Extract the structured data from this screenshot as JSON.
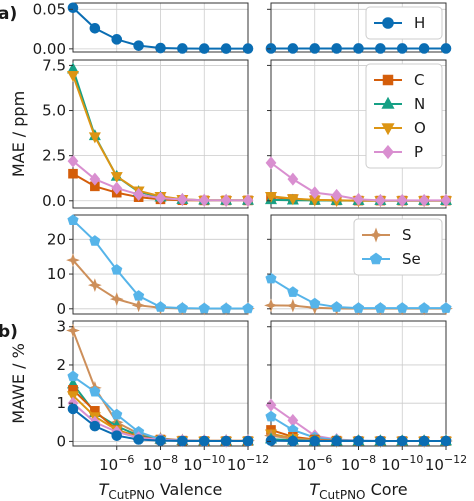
{
  "chart_data": {
    "type": "line",
    "x": [
      0.0001,
      1e-05,
      1e-06,
      1e-07,
      1e-08,
      1e-09,
      1e-10,
      1e-11,
      1e-12
    ],
    "x_scale": "log-reversed",
    "xlim_exp": [
      -4,
      -12
    ],
    "x_ticks": [
      {
        "base": "10",
        "exp": "−6"
      },
      {
        "base": "10",
        "exp": "−8"
      },
      {
        "base": "10",
        "exp": "−10"
      },
      {
        "base": "10",
        "exp": "−12"
      }
    ],
    "x_tick_exps": [
      -6,
      -8,
      -10,
      -12
    ],
    "xlabels": {
      "valence": {
        "sym": "T",
        "sub": "CutPNO",
        "rest": " Valence"
      },
      "core": {
        "sym": "T",
        "sub": "CutPNO",
        "rest": " Core"
      }
    },
    "grid": true,
    "colors": {
      "H": "#0a6db3",
      "C": "#d45d0a",
      "N": "#16a085",
      "O": "#dc9514",
      "P": "#d98fd0",
      "S": "#cd8f5a",
      "Se": "#56b4e9"
    },
    "rows": [
      {
        "label": "a)",
        "ylabel": "",
        "ylim": [
          -0.004,
          0.058
        ],
        "yticks": [
          0.0,
          0.05
        ],
        "ytick_labels": [
          "0.00",
          "0.05"
        ],
        "legend": [
          "H"
        ],
        "valence": [
          {
            "name": "H",
            "marker": "circle",
            "values": [
              0.052,
              0.026,
              0.012,
              0.004,
              0.001,
              0.0005,
              0.0003,
              0.0003,
              0.0003
            ]
          }
        ],
        "core": [
          {
            "name": "H",
            "marker": "circle",
            "values": [
              0.0005,
              0.0005,
              0.0005,
              0.0005,
              0.0005,
              0.0005,
              0.0005,
              0.0005,
              0.0005
            ]
          }
        ]
      },
      {
        "label": "",
        "ylabel": "MAE / ppm",
        "ylim": [
          -0.4,
          7.8
        ],
        "yticks": [
          0.0,
          2.5,
          5.0,
          7.5
        ],
        "ytick_labels": [
          "0.0",
          "2.5",
          "5.0",
          "7.5"
        ],
        "legend": [
          "C",
          "N",
          "O",
          "P"
        ],
        "valence": [
          {
            "name": "C",
            "marker": "square",
            "values": [
              1.5,
              0.8,
              0.45,
              0.2,
              0.08,
              0.03,
              0.02,
              0.02,
              0.02
            ]
          },
          {
            "name": "N",
            "marker": "triangle-up",
            "values": [
              7.3,
              3.6,
              1.35,
              0.5,
              0.2,
              0.07,
              0.03,
              0.02,
              0.02
            ]
          },
          {
            "name": "O",
            "marker": "triangle-down",
            "values": [
              6.95,
              3.55,
              1.35,
              0.55,
              0.25,
              0.08,
              0.03,
              0.02,
              0.02
            ]
          },
          {
            "name": "P",
            "marker": "diamond",
            "values": [
              2.2,
              1.2,
              0.7,
              0.35,
              0.15,
              0.07,
              0.03,
              0.02,
              0.02
            ]
          }
        ],
        "core": [
          {
            "name": "C",
            "marker": "square",
            "values": [
              0.2,
              0.1,
              0.04,
              0.02,
              0.01,
              0.01,
              0.01,
              0.01,
              0.01
            ]
          },
          {
            "name": "N",
            "marker": "triangle-up",
            "values": [
              0.05,
              0.03,
              0.02,
              0.01,
              0.01,
              0.01,
              0.01,
              0.01,
              0.01
            ]
          },
          {
            "name": "O",
            "marker": "triangle-down",
            "values": [
              0.25,
              0.12,
              0.05,
              0.02,
              0.01,
              0.01,
              0.01,
              0.01,
              0.01
            ]
          },
          {
            "name": "P",
            "marker": "diamond",
            "values": [
              2.1,
              1.2,
              0.45,
              0.3,
              0.08,
              0.02,
              0.02,
              0.02,
              0.02
            ]
          }
        ]
      },
      {
        "label": "",
        "ylabel": "",
        "ylim": [
          -1.5,
          27
        ],
        "yticks": [
          0,
          10,
          20
        ],
        "ytick_labels": [
          "0",
          "10",
          "20"
        ],
        "legend": [
          "S",
          "Se"
        ],
        "valence": [
          {
            "name": "S",
            "marker": "thin-diamond",
            "values": [
              14,
              6.8,
              2.8,
              1.0,
              0.3,
              0.1,
              0.05,
              0.05,
              0.05
            ]
          },
          {
            "name": "Se",
            "marker": "pentagon",
            "values": [
              25.5,
              19.5,
              11.2,
              3.7,
              0.5,
              0.2,
              0.1,
              0.1,
              0.1
            ]
          }
        ],
        "core": [
          {
            "name": "S",
            "marker": "thin-diamond",
            "values": [
              1.0,
              0.9,
              0.3,
              0.1,
              0.05,
              0.05,
              0.05,
              0.05,
              0.05
            ]
          },
          {
            "name": "Se",
            "marker": "pentagon",
            "values": [
              8.7,
              4.8,
              1.5,
              0.5,
              0.2,
              0.2,
              0.2,
              0.2,
              0.2
            ]
          }
        ]
      },
      {
        "label": "b)",
        "ylabel": "MAWE / %",
        "ylim": [
          -0.12,
          3.15
        ],
        "yticks": [
          0,
          1,
          2,
          3
        ],
        "ytick_labels": [
          "0",
          "1",
          "2",
          "3"
        ],
        "legend": [],
        "valence": [
          {
            "name": "S",
            "marker": "thin-diamond",
            "values": [
              2.9,
              1.4,
              0.5,
              0.2,
              0.08,
              0.03,
              0.02,
              0.02,
              0.02
            ]
          },
          {
            "name": "N",
            "marker": "triangle-up",
            "values": [
              1.5,
              0.75,
              0.4,
              0.15,
              0.05,
              0.02,
              0.01,
              0.01,
              0.01
            ]
          },
          {
            "name": "C",
            "marker": "square",
            "values": [
              1.35,
              0.8,
              0.3,
              0.12,
              0.05,
              0.02,
              0.01,
              0.01,
              0.01
            ]
          },
          {
            "name": "O",
            "marker": "triangle-down",
            "values": [
              1.2,
              0.65,
              0.3,
              0.1,
              0.04,
              0.02,
              0.01,
              0.01,
              0.01
            ]
          },
          {
            "name": "Se",
            "marker": "pentagon",
            "values": [
              1.7,
              1.3,
              0.7,
              0.25,
              0.05,
              0.02,
              0.01,
              0.01,
              0.01
            ]
          },
          {
            "name": "P",
            "marker": "diamond",
            "values": [
              1.0,
              0.5,
              0.25,
              0.1,
              0.04,
              0.02,
              0.01,
              0.01,
              0.01
            ]
          },
          {
            "name": "H",
            "marker": "circle",
            "values": [
              0.85,
              0.4,
              0.15,
              0.05,
              0.02,
              0.01,
              0.01,
              0.01,
              0.01
            ]
          }
        ],
        "core": [
          {
            "name": "P",
            "marker": "diamond",
            "values": [
              0.95,
              0.55,
              0.15,
              0.05,
              0.02,
              0.01,
              0.01,
              0.01,
              0.01
            ]
          },
          {
            "name": "Se",
            "marker": "pentagon",
            "values": [
              0.65,
              0.3,
              0.1,
              0.04,
              0.02,
              0.01,
              0.01,
              0.01,
              0.01
            ]
          },
          {
            "name": "C",
            "marker": "square",
            "values": [
              0.3,
              0.12,
              0.05,
              0.02,
              0.01,
              0.01,
              0.01,
              0.01,
              0.01
            ]
          },
          {
            "name": "O",
            "marker": "triangle-down",
            "values": [
              0.2,
              0.08,
              0.03,
              0.01,
              0.01,
              0.01,
              0.01,
              0.01,
              0.01
            ]
          },
          {
            "name": "S",
            "marker": "thin-diamond",
            "values": [
              0.15,
              0.07,
              0.03,
              0.01,
              0.01,
              0.01,
              0.01,
              0.01,
              0.01
            ]
          },
          {
            "name": "N",
            "marker": "triangle-up",
            "values": [
              0.06,
              0.03,
              0.01,
              0.01,
              0.01,
              0.01,
              0.01,
              0.01,
              0.01
            ]
          },
          {
            "name": "H",
            "marker": "circle",
            "values": [
              0.02,
              0.01,
              0.01,
              0.01,
              0.01,
              0.01,
              0.01,
              0.01,
              0.01
            ]
          }
        ]
      }
    ]
  }
}
